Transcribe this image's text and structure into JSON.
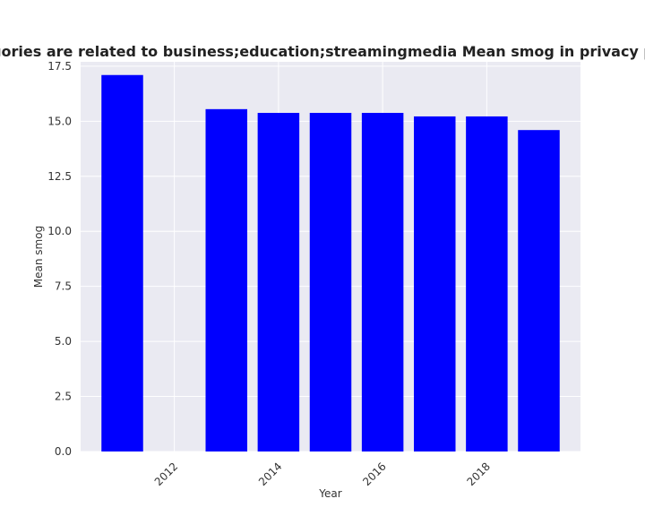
{
  "chart_data": {
    "type": "bar",
    "title": "on categories are related to business;education;streamingmedia Mean smog in privacy policies by",
    "xlabel": "Year",
    "ylabel": "Mean smog",
    "x": [
      2011,
      2013,
      2014,
      2015,
      2016,
      2017,
      2018,
      2019
    ],
    "values": [
      17.1,
      15.55,
      15.38,
      15.38,
      15.38,
      15.22,
      15.22,
      14.6
    ],
    "xlim": [
      2010.2,
      2019.8
    ],
    "ylim": [
      0,
      17.7
    ],
    "xticks": [
      2012,
      2014,
      2016,
      2018
    ],
    "xtick_labels": [
      "2012",
      "2014",
      "2016",
      "2018"
    ],
    "yticks": [
      0,
      2.5,
      5,
      7.5,
      10,
      12.5,
      15,
      17.5
    ],
    "ytick_labels": [
      "0.0",
      "2.5",
      "5.0",
      "7.5",
      "10.0",
      "12.5",
      "15.0",
      "17.5"
    ],
    "bar_color": "#0000ff",
    "background_color": "#eaeaf2",
    "grid": true
  }
}
